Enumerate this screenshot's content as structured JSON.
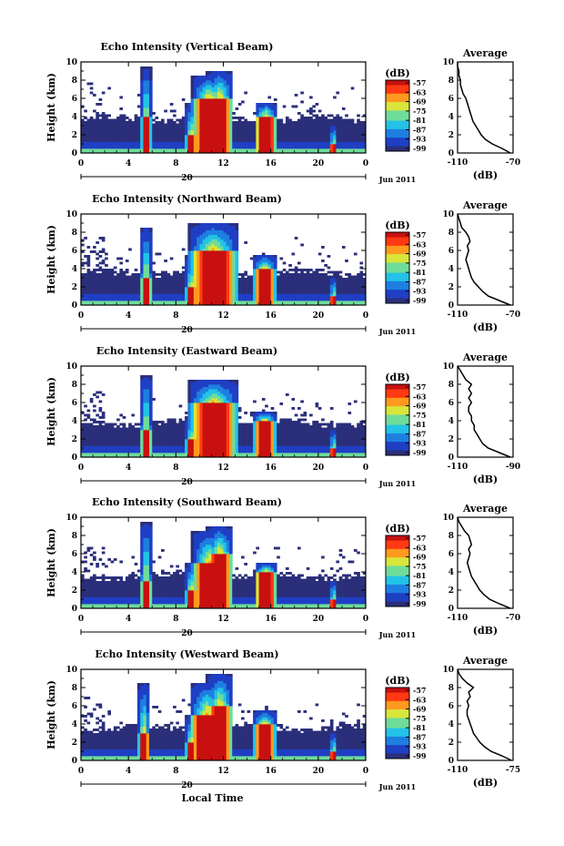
{
  "figure": {
    "xlabel": "Local Time",
    "date_label": "Jun 2011",
    "day_label": "20",
    "average_title": "Average",
    "average_xlabel": "(dB)",
    "colorbar_unit": "(dB)"
  },
  "chart_data": [
    {
      "type": "heatmap",
      "title": "Echo Intensity (Vertical Beam)",
      "ylabel": "Height (km)",
      "x_ticks": [
        "0",
        "4",
        "8",
        "12",
        "16",
        "20",
        "0"
      ],
      "y_ticks": [
        "0",
        "2",
        "4",
        "6",
        "8",
        "10"
      ],
      "xlim": [
        0,
        24
      ],
      "ylim": [
        0,
        10
      ],
      "colorbar_ticks": [
        "-57",
        "-63",
        "-69",
        "-75",
        "-81",
        "-87",
        "-93",
        "-99"
      ],
      "colorbar_range": [
        -99,
        -57
      ],
      "features": [
        {
          "t": 5.5,
          "top": 9.5,
          "w": 0.25,
          "core": 4
        },
        {
          "t": 9.3,
          "top": 5.5,
          "w": 0.3,
          "core": 2
        },
        {
          "t": 10.8,
          "top": 8.5,
          "w": 0.9,
          "core": 6
        },
        {
          "t": 11.7,
          "top": 9,
          "w": 0.7,
          "core": 6
        },
        {
          "t": 15.6,
          "top": 5.5,
          "w": 0.6,
          "core": 4
        },
        {
          "t": 21.3,
          "top": 3,
          "w": 0.2,
          "core": 1
        }
      ],
      "layer_top": 4,
      "average": {
        "x_ticks": [
          "-110",
          "-70"
        ],
        "xlim": [
          -110,
          -70
        ],
        "y_ticks": [
          "0",
          "2",
          "4",
          "6",
          "8",
          "10"
        ],
        "profile": [
          [
            -72,
            0
          ],
          [
            -78,
            0.5
          ],
          [
            -85,
            1
          ],
          [
            -90,
            1.5
          ],
          [
            -93,
            2
          ],
          [
            -95,
            2.5
          ],
          [
            -97,
            3
          ],
          [
            -99,
            3.5
          ],
          [
            -100,
            4
          ],
          [
            -101,
            4.5
          ],
          [
            -102,
            5
          ],
          [
            -103,
            5.5
          ],
          [
            -104,
            6
          ],
          [
            -106,
            6.5
          ],
          [
            -107,
            7
          ],
          [
            -108,
            7.5
          ],
          [
            -108,
            8
          ],
          [
            -109,
            8.5
          ],
          [
            -109,
            9
          ],
          [
            -110,
            9.5
          ],
          [
            -110,
            10
          ]
        ]
      }
    },
    {
      "type": "heatmap",
      "title": "Echo Intensity (Northward Beam)",
      "ylabel": "Height (km)",
      "x_ticks": [
        "0",
        "4",
        "8",
        "12",
        "16",
        "20",
        "0"
      ],
      "y_ticks": [
        "0",
        "2",
        "4",
        "6",
        "8",
        "10"
      ],
      "xlim": [
        0,
        24
      ],
      "ylim": [
        0,
        10
      ],
      "colorbar_ticks": [
        "-57",
        "-63",
        "-69",
        "-75",
        "-81",
        "-87",
        "-93",
        "-99"
      ],
      "colorbar_range": [
        -99,
        -57
      ],
      "features": [
        {
          "t": 5.5,
          "top": 8.5,
          "w": 0.3,
          "core": 3
        },
        {
          "t": 9.3,
          "top": 5.5,
          "w": 0.3,
          "core": 2
        },
        {
          "t": 11.2,
          "top": 9,
          "w": 1.3,
          "core": 6
        },
        {
          "t": 15.5,
          "top": 5.5,
          "w": 0.6,
          "core": 4
        },
        {
          "t": 21.3,
          "top": 3,
          "w": 0.2,
          "core": 1
        }
      ],
      "layer_top": 3.8,
      "average": {
        "x_ticks": [
          "-110",
          "-70"
        ],
        "xlim": [
          -110,
          -70
        ],
        "y_ticks": [
          "0",
          "2",
          "4",
          "6",
          "8",
          "10"
        ],
        "profile": [
          [
            -72,
            0
          ],
          [
            -80,
            0.5
          ],
          [
            -88,
            1
          ],
          [
            -92,
            1.5
          ],
          [
            -95,
            2
          ],
          [
            -98,
            2.5
          ],
          [
            -100,
            3
          ],
          [
            -101,
            3.5
          ],
          [
            -102,
            4
          ],
          [
            -103,
            4.5
          ],
          [
            -104,
            5
          ],
          [
            -103,
            5.5
          ],
          [
            -102,
            6
          ],
          [
            -103,
            6.5
          ],
          [
            -101,
            7
          ],
          [
            -102,
            7.5
          ],
          [
            -104,
            8
          ],
          [
            -107,
            8.5
          ],
          [
            -108,
            9
          ],
          [
            -109,
            9.5
          ],
          [
            -110,
            10
          ]
        ]
      }
    },
    {
      "type": "heatmap",
      "title": "Echo Intensity (Eastward Beam)",
      "ylabel": "Height (km)",
      "x_ticks": [
        "0",
        "4",
        "8",
        "12",
        "16",
        "20",
        "0"
      ],
      "y_ticks": [
        "0",
        "2",
        "4",
        "6",
        "8",
        "10"
      ],
      "xlim": [
        0,
        24
      ],
      "ylim": [
        0,
        10
      ],
      "colorbar_ticks": [
        "-57",
        "-63",
        "-69",
        "-75",
        "-81",
        "-87",
        "-93",
        "-99"
      ],
      "colorbar_range": [
        -99,
        -57
      ],
      "features": [
        {
          "t": 5.5,
          "top": 9,
          "w": 0.3,
          "core": 3
        },
        {
          "t": 9.3,
          "top": 4.5,
          "w": 0.3,
          "core": 2
        },
        {
          "t": 11.2,
          "top": 8.5,
          "w": 1.3,
          "core": 6
        },
        {
          "t": 15.5,
          "top": 5,
          "w": 0.6,
          "core": 4
        },
        {
          "t": 21.3,
          "top": 3,
          "w": 0.2,
          "core": 1
        }
      ],
      "layer_top": 4,
      "average": {
        "x_ticks": [
          "-110",
          "-90"
        ],
        "xlim": [
          -110,
          -90
        ],
        "y_ticks": [
          "0",
          "2",
          "4",
          "6",
          "8",
          "10"
        ],
        "profile": [
          [
            -91,
            0
          ],
          [
            -95,
            0.5
          ],
          [
            -99,
            1
          ],
          [
            -101,
            1.5
          ],
          [
            -102,
            2
          ],
          [
            -103,
            2.5
          ],
          [
            -104,
            3
          ],
          [
            -104,
            3.5
          ],
          [
            -105,
            4
          ],
          [
            -105,
            4.5
          ],
          [
            -106,
            5
          ],
          [
            -106,
            5.5
          ],
          [
            -105,
            6
          ],
          [
            -106,
            6.5
          ],
          [
            -105,
            7
          ],
          [
            -106,
            7.5
          ],
          [
            -105,
            8
          ],
          [
            -107,
            8.5
          ],
          [
            -108,
            9
          ],
          [
            -109,
            9.5
          ],
          [
            -110,
            10
          ]
        ]
      }
    },
    {
      "type": "heatmap",
      "title": "Echo Intensity (Southward Beam)",
      "ylabel": "Height (km)",
      "x_ticks": [
        "0",
        "4",
        "8",
        "12",
        "16",
        "20",
        "0"
      ],
      "y_ticks": [
        "0",
        "2",
        "4",
        "6",
        "8",
        "10"
      ],
      "xlim": [
        0,
        24
      ],
      "ylim": [
        0,
        10
      ],
      "colorbar_ticks": [
        "-57",
        "-63",
        "-69",
        "-75",
        "-81",
        "-87",
        "-93",
        "-99"
      ],
      "colorbar_range": [
        -99,
        -57
      ],
      "features": [
        {
          "t": 5.5,
          "top": 9.5,
          "w": 0.3,
          "core": 3
        },
        {
          "t": 9.3,
          "top": 5,
          "w": 0.3,
          "core": 2
        },
        {
          "t": 10.8,
          "top": 8.5,
          "w": 0.9,
          "core": 5
        },
        {
          "t": 11.7,
          "top": 9,
          "w": 0.7,
          "core": 6
        },
        {
          "t": 15.6,
          "top": 5,
          "w": 0.6,
          "core": 4
        },
        {
          "t": 21.3,
          "top": 3,
          "w": 0.2,
          "core": 1
        }
      ],
      "layer_top": 3.8,
      "average": {
        "x_ticks": [
          "-110",
          "-70"
        ],
        "xlim": [
          -110,
          -70
        ],
        "y_ticks": [
          "0",
          "2",
          "4",
          "6",
          "8",
          "10"
        ],
        "profile": [
          [
            -72,
            0
          ],
          [
            -80,
            0.5
          ],
          [
            -87,
            1
          ],
          [
            -91,
            1.5
          ],
          [
            -94,
            2
          ],
          [
            -96,
            2.5
          ],
          [
            -98,
            3
          ],
          [
            -100,
            3.5
          ],
          [
            -101,
            4
          ],
          [
            -102,
            4.5
          ],
          [
            -103,
            5
          ],
          [
            -102,
            5.5
          ],
          [
            -101,
            6
          ],
          [
            -102,
            6.5
          ],
          [
            -100,
            7
          ],
          [
            -101,
            7.5
          ],
          [
            -102,
            8
          ],
          [
            -105,
            8.5
          ],
          [
            -107,
            9
          ],
          [
            -109,
            9.5
          ],
          [
            -110,
            10
          ]
        ]
      }
    },
    {
      "type": "heatmap",
      "title": "Echo Intensity (Westward Beam)",
      "ylabel": "Height (km)",
      "x_ticks": [
        "0",
        "4",
        "8",
        "12",
        "16",
        "20",
        "0"
      ],
      "y_ticks": [
        "0",
        "2",
        "4",
        "6",
        "8",
        "10"
      ],
      "xlim": [
        0,
        24
      ],
      "ylim": [
        0,
        10
      ],
      "colorbar_ticks": [
        "-57",
        "-63",
        "-69",
        "-75",
        "-81",
        "-87",
        "-93",
        "-99"
      ],
      "colorbar_range": [
        -99,
        -57
      ],
      "features": [
        {
          "t": 5.3,
          "top": 8.5,
          "w": 0.3,
          "core": 3
        },
        {
          "t": 9.3,
          "top": 5,
          "w": 0.3,
          "core": 2
        },
        {
          "t": 10.6,
          "top": 8.5,
          "w": 0.9,
          "core": 5
        },
        {
          "t": 11.7,
          "top": 9.5,
          "w": 0.7,
          "core": 6
        },
        {
          "t": 15.5,
          "top": 5.5,
          "w": 0.6,
          "core": 4
        },
        {
          "t": 21.3,
          "top": 3,
          "w": 0.2,
          "core": 1
        }
      ],
      "layer_top": 3.8,
      "average": {
        "x_ticks": [
          "-110",
          "-75"
        ],
        "xlim": [
          -110,
          -75
        ],
        "y_ticks": [
          "0",
          "2",
          "4",
          "6",
          "8",
          "10"
        ],
        "profile": [
          [
            -76,
            0
          ],
          [
            -82,
            0.5
          ],
          [
            -89,
            1
          ],
          [
            -93,
            1.5
          ],
          [
            -96,
            2
          ],
          [
            -98,
            2.5
          ],
          [
            -100,
            3
          ],
          [
            -101,
            3.5
          ],
          [
            -102,
            4
          ],
          [
            -103,
            4.5
          ],
          [
            -104,
            5
          ],
          [
            -104,
            5.5
          ],
          [
            -103,
            6
          ],
          [
            -104,
            6.5
          ],
          [
            -102,
            7
          ],
          [
            -103,
            7.5
          ],
          [
            -100,
            8
          ],
          [
            -104,
            8.5
          ],
          [
            -107,
            9
          ],
          [
            -109,
            9.5
          ],
          [
            -110,
            10
          ]
        ]
      }
    }
  ],
  "colors": {
    "background": "#ffffff",
    "ink": "#000000",
    "cmap": [
      "#2b2f7a",
      "#1f3fc4",
      "#1e7fe0",
      "#22c3e6",
      "#6fdc9a",
      "#d8e63a",
      "#ff9a1e",
      "#ff3a12",
      "#c81010"
    ]
  }
}
